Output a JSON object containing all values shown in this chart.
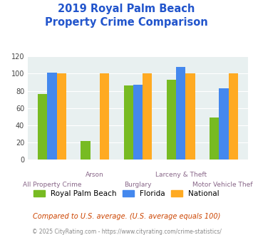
{
  "title_line1": "2019 Royal Palm Beach",
  "title_line2": "Property Crime Comparison",
  "categories": [
    "All Property Crime",
    "Arson",
    "Burglary",
    "Larceny & Theft",
    "Motor Vehicle Theft"
  ],
  "series": {
    "Royal Palm Beach": [
      76,
      22,
      86,
      93,
      49
    ],
    "Florida": [
      101,
      0,
      87,
      108,
      83
    ],
    "National": [
      100,
      100,
      100,
      100,
      100
    ]
  },
  "colors": {
    "Royal Palm Beach": "#77bb22",
    "Florida": "#4488ee",
    "National": "#ffaa22"
  },
  "ylim": [
    0,
    120
  ],
  "yticks": [
    0,
    20,
    40,
    60,
    80,
    100,
    120
  ],
  "xlabel_top": [
    "",
    "Arson",
    "",
    "Larceny & Theft",
    ""
  ],
  "xlabel_bottom": [
    "All Property Crime",
    "",
    "Burglary",
    "",
    "Motor Vehicle Theft"
  ],
  "footnote1": "Compared to U.S. average. (U.S. average equals 100)",
  "footnote2": "© 2025 CityRating.com - https://www.cityrating.com/crime-statistics/",
  "bg_color": "#e8f0f0",
  "title_color": "#2255cc",
  "xlabel_color": "#886688",
  "legend_labels": [
    "Royal Palm Beach",
    "Florida",
    "National"
  ],
  "footnote1_color": "#cc4400",
  "footnote2_color": "#888888"
}
